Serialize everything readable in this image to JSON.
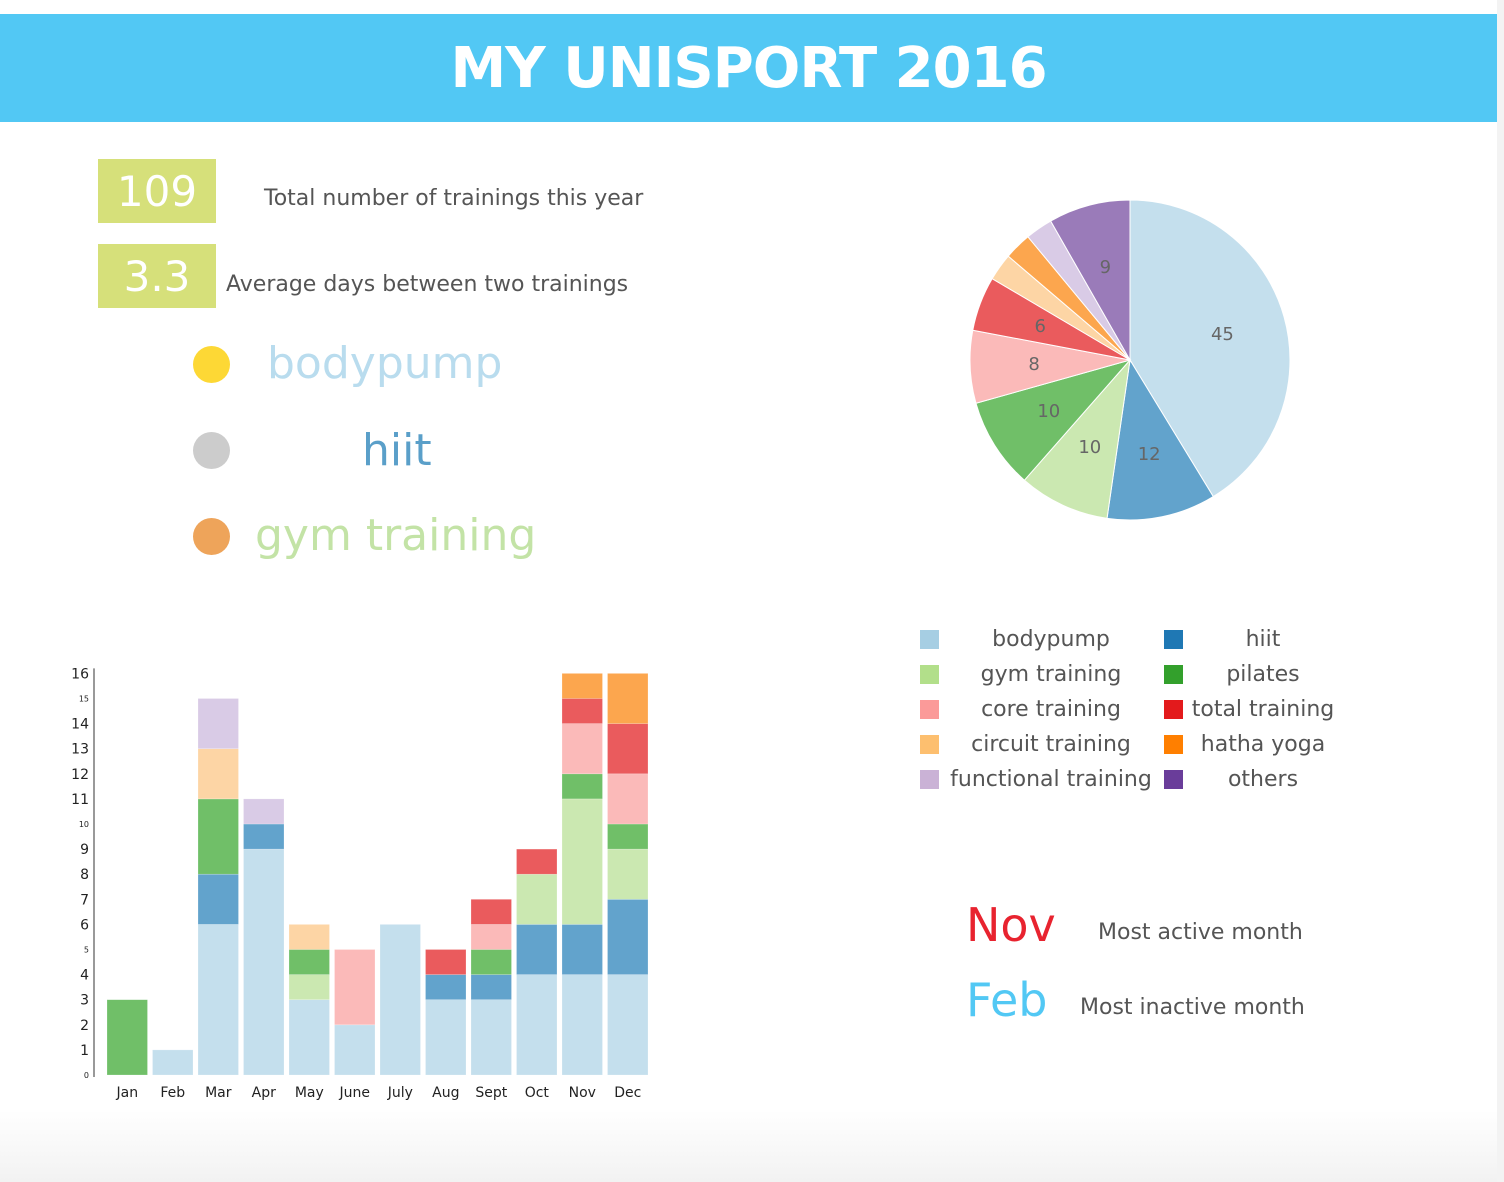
{
  "header": {
    "title": "MY UNISPORT 2016"
  },
  "stats": {
    "total_value": "109",
    "total_label": "Total number of trainings this year",
    "avg_value": "3.3",
    "avg_label": "Average days between two trainings"
  },
  "top_activities": [
    {
      "label": "bodypump",
      "dot_color": "#fdd835",
      "text_color": "#b9dcee"
    },
    {
      "label": "hiit",
      "dot_color": "#cccccc",
      "text_color": "#5a9fc9"
    },
    {
      "label": "gym training",
      "dot_color": "#eea45a",
      "text_color": "#c3e3a6"
    }
  ],
  "legend": [
    {
      "label": "bodypump",
      "color": "#a6cee3"
    },
    {
      "label": "hiit",
      "color": "#1f78b4"
    },
    {
      "label": "gym training",
      "color": "#b2df8a"
    },
    {
      "label": "pilates",
      "color": "#33a02c"
    },
    {
      "label": "core training",
      "color": "#fb9a99"
    },
    {
      "label": "total training",
      "color": "#e31a1c"
    },
    {
      "label": "circuit training",
      "color": "#fdbf6f"
    },
    {
      "label": "hatha yoga",
      "color": "#ff7f00"
    },
    {
      "label": "functional training",
      "color": "#cab2d6"
    },
    {
      "label": "others",
      "color": "#6a3d9a"
    }
  ],
  "months": {
    "active_value": "Nov",
    "active_label": "Most active month",
    "active_color": "#e8232f",
    "inactive_value": "Feb",
    "inactive_label": "Most inactive month",
    "inactive_color": "#52c8f4"
  },
  "chart_data": [
    {
      "type": "pie",
      "labels": [
        "bodypump",
        "hiit",
        "gym training",
        "pilates",
        "core training",
        "total training",
        "circuit training",
        "hatha yoga",
        "functional training",
        "others"
      ],
      "values": [
        45,
        12,
        10,
        10,
        8,
        6,
        3,
        3,
        3,
        9
      ],
      "data_labels": [
        "45",
        "12",
        "10",
        "10",
        "8",
        "6",
        "",
        "",
        "",
        "9"
      ],
      "colors": [
        "#c4dfed",
        "#62a3cc",
        "#cbe8b1",
        "#70bf68",
        "#fbbab9",
        "#ea5b5d",
        "#fdd5a5",
        "#fca64e",
        "#d9cbe6",
        "#9a7bb9"
      ]
    },
    {
      "type": "bar",
      "stacked": true,
      "categories": [
        "Jan",
        "Feb",
        "Mar",
        "Apr",
        "May",
        "June",
        "July",
        "Aug",
        "Sept",
        "Oct",
        "Nov",
        "Dec"
      ],
      "yticks": [
        "0",
        "1",
        "2",
        "3",
        "4",
        "5",
        "6",
        "7",
        "8",
        "9",
        "10",
        "11",
        "12",
        "13",
        "14",
        "15",
        "16"
      ],
      "ylim": [
        0,
        16
      ],
      "series": [
        {
          "name": "bodypump",
          "color": "#c4dfed",
          "values": [
            0,
            1,
            6,
            9,
            3,
            2,
            6,
            3,
            3,
            4,
            4,
            4
          ]
        },
        {
          "name": "hiit",
          "color": "#62a3cc",
          "values": [
            0,
            0,
            2,
            1,
            0,
            0,
            0,
            1,
            1,
            2,
            2,
            3
          ]
        },
        {
          "name": "gym training",
          "color": "#cbe8b1",
          "values": [
            0,
            0,
            0,
            0,
            1,
            0,
            0,
            0,
            0,
            2,
            5,
            2
          ]
        },
        {
          "name": "pilates",
          "color": "#70bf68",
          "values": [
            3,
            0,
            3,
            0,
            1,
            0,
            0,
            0,
            1,
            0,
            1,
            1
          ]
        },
        {
          "name": "core training",
          "color": "#fbbab9",
          "values": [
            0,
            0,
            0,
            0,
            0,
            3,
            0,
            0,
            1,
            0,
            2,
            2
          ]
        },
        {
          "name": "total training",
          "color": "#ea5b5d",
          "values": [
            0,
            0,
            0,
            0,
            0,
            0,
            0,
            1,
            1,
            1,
            1,
            2
          ]
        },
        {
          "name": "circuit training",
          "color": "#fdd5a5",
          "values": [
            0,
            0,
            2,
            0,
            1,
            0,
            0,
            0,
            0,
            0,
            0,
            0
          ]
        },
        {
          "name": "hatha yoga",
          "color": "#fca64e",
          "values": [
            0,
            0,
            0,
            0,
            0,
            0,
            0,
            0,
            0,
            0,
            1,
            2
          ]
        },
        {
          "name": "functional training",
          "color": "#d9cbe6",
          "values": [
            0,
            0,
            2,
            1,
            0,
            0,
            0,
            0,
            0,
            0,
            0,
            0
          ]
        }
      ]
    }
  ]
}
